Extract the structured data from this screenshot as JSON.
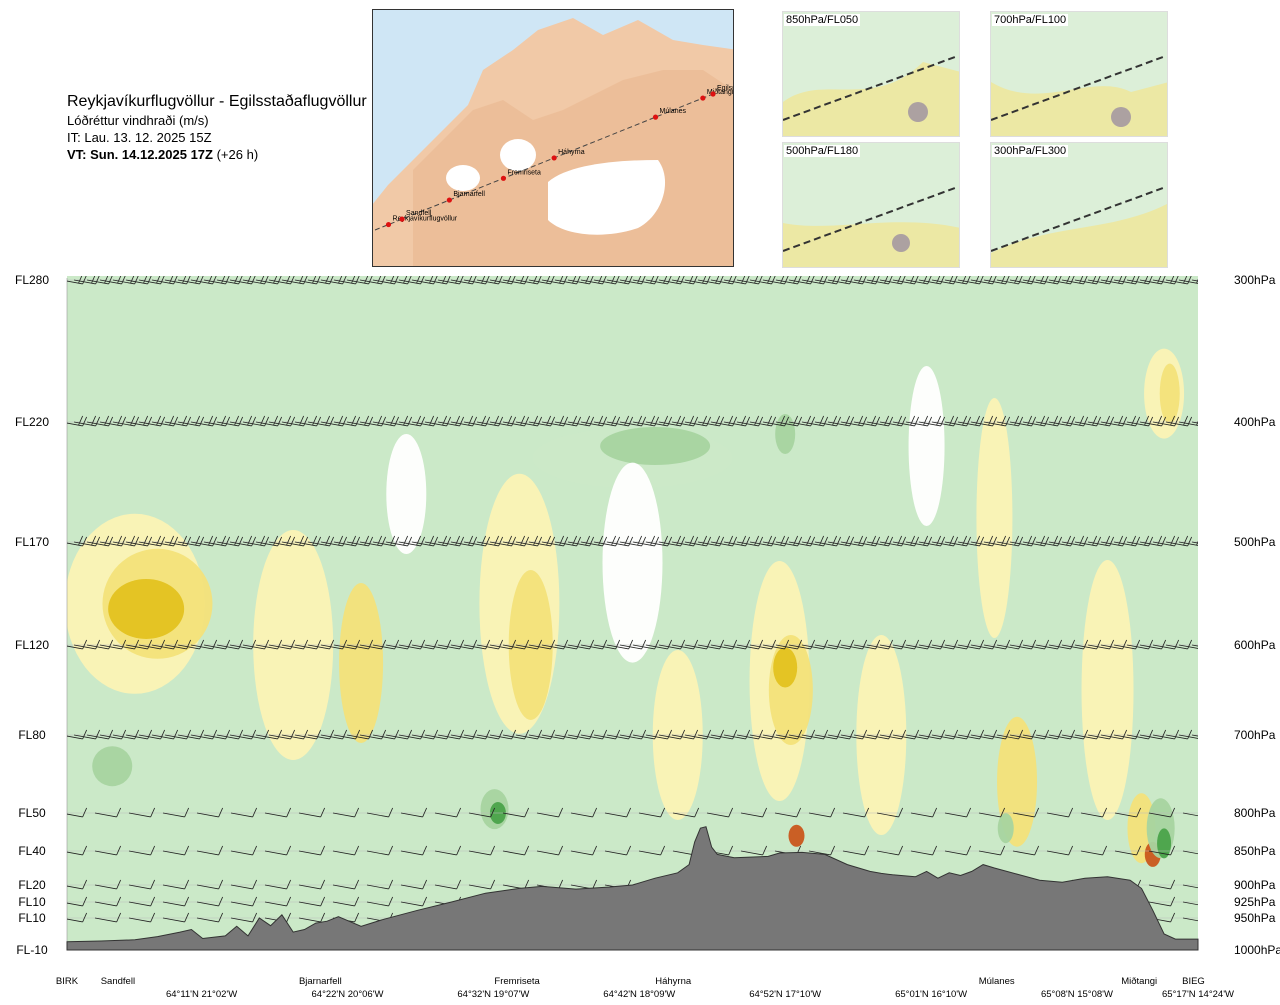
{
  "header": {
    "route_title": "Reykjavíkurflugvöllur - Egilsstaðaflugvöllur",
    "parameter": "Lóðréttur vindhraði (m/s)",
    "issue_time": "IT: Lau. 13. 12. 2025 15Z",
    "valid_time_bold": "VT: Sun. 14.12.2025 17Z",
    "valid_time_offset": "(+26 h)"
  },
  "route_map": {
    "waypoints": [
      "Reykjavíkurflugvöllur",
      "Sandfell",
      "Bjarnarfell",
      "Fremriseta",
      "Háhyrna",
      "Múlanes",
      "Miðtangi",
      "Egilssta"
    ]
  },
  "mini_maps": [
    {
      "label": "850hPa/FL050"
    },
    {
      "label": "700hPa/FL100"
    },
    {
      "label": "500hPa/FL180"
    },
    {
      "label": "300hPa/FL300"
    }
  ],
  "chart_data": {
    "type": "heatmap",
    "description_levels": [
      {
        "fl": "FL280",
        "hpa": "300hPa",
        "p": 300
      },
      {
        "fl": "FL220",
        "hpa": "400hPa",
        "p": 400
      },
      {
        "fl": "FL170",
        "hpa": "500hPa",
        "p": 500
      },
      {
        "fl": "FL120",
        "hpa": "600hPa",
        "p": 600
      },
      {
        "fl": "FL80",
        "hpa": "700hPa",
        "p": 700
      },
      {
        "fl": "FL50",
        "hpa": "800hPa",
        "p": 800
      },
      {
        "fl": "FL40",
        "hpa": "850hPa",
        "p": 850
      },
      {
        "fl": "FL20",
        "hpa": "900hPa",
        "p": 900
      },
      {
        "fl": "FL10",
        "hpa": "925hPa",
        "p": 925
      },
      {
        "fl": "FL10",
        "hpa": "950hPa",
        "p": 950
      },
      {
        "fl": "FL-10",
        "hpa": "1000hPa",
        "p": 1000
      }
    ],
    "waypoints": [
      {
        "name": "BIRK",
        "frac": 0.0
      },
      {
        "name": "Sandfell",
        "frac": 0.045
      },
      {
        "name": "Bjarnarfell",
        "frac": 0.224
      },
      {
        "name": "Fremriseta",
        "frac": 0.398
      },
      {
        "name": "Háhyrna",
        "frac": 0.536
      },
      {
        "name": "Múlanes",
        "frac": 0.822
      },
      {
        "name": "Miðtangi",
        "frac": 0.948
      },
      {
        "name": "BIEG",
        "frac": 0.996
      }
    ],
    "coordinates": [
      {
        "label": "64°11'N 21°02'W",
        "frac": 0.119
      },
      {
        "label": "64°22'N 20°06'W",
        "frac": 0.248
      },
      {
        "label": "64°32'N 19°07'W",
        "frac": 0.377
      },
      {
        "label": "64°42'N 18°09'W",
        "frac": 0.506
      },
      {
        "label": "64°52'N 17°10'W",
        "frac": 0.635
      },
      {
        "label": "65°01'N 16°10'W",
        "frac": 0.764
      },
      {
        "label": "65°08'N 15°08'W",
        "frac": 0.893
      },
      {
        "label": "65°17'N 14°24'W",
        "frac": 1.0
      }
    ],
    "terrain_profile_hpa": [
      [
        0.0,
        987
      ],
      [
        0.03,
        986
      ],
      [
        0.06,
        984
      ],
      [
        0.08,
        979
      ],
      [
        0.1,
        972
      ],
      [
        0.11,
        968
      ],
      [
        0.12,
        982
      ],
      [
        0.14,
        978
      ],
      [
        0.15,
        963
      ],
      [
        0.16,
        978
      ],
      [
        0.17,
        950
      ],
      [
        0.18,
        962
      ],
      [
        0.19,
        945
      ],
      [
        0.2,
        972
      ],
      [
        0.21,
        968
      ],
      [
        0.22,
        958
      ],
      [
        0.23,
        955
      ],
      [
        0.24,
        948
      ],
      [
        0.26,
        963
      ],
      [
        0.28,
        952
      ],
      [
        0.31,
        938
      ],
      [
        0.34,
        925
      ],
      [
        0.37,
        912
      ],
      [
        0.4,
        905
      ],
      [
        0.42,
        902
      ],
      [
        0.45,
        906
      ],
      [
        0.48,
        903
      ],
      [
        0.5,
        900
      ],
      [
        0.52,
        890
      ],
      [
        0.54,
        882
      ],
      [
        0.55,
        870
      ],
      [
        0.555,
        838
      ],
      [
        0.56,
        820
      ],
      [
        0.565,
        818
      ],
      [
        0.57,
        845
      ],
      [
        0.575,
        855
      ],
      [
        0.59,
        860
      ],
      [
        0.62,
        858
      ],
      [
        0.63,
        853
      ],
      [
        0.65,
        852
      ],
      [
        0.67,
        855
      ],
      [
        0.69,
        870
      ],
      [
        0.71,
        880
      ],
      [
        0.72,
        883
      ],
      [
        0.73,
        885
      ],
      [
        0.75,
        888
      ],
      [
        0.76,
        880
      ],
      [
        0.77,
        890
      ],
      [
        0.78,
        882
      ],
      [
        0.79,
        886
      ],
      [
        0.8,
        880
      ],
      [
        0.81,
        870
      ],
      [
        0.82,
        875
      ],
      [
        0.84,
        884
      ],
      [
        0.86,
        893
      ],
      [
        0.88,
        896
      ],
      [
        0.9,
        890
      ],
      [
        0.92,
        888
      ],
      [
        0.94,
        893
      ],
      [
        0.95,
        905
      ],
      [
        0.96,
        938
      ],
      [
        0.97,
        975
      ],
      [
        0.98,
        983
      ],
      [
        1.0,
        983
      ]
    ],
    "vertical_velocity_bands": [
      {
        "level": "weak-up",
        "color": "#fbf3b5"
      },
      {
        "level": "moderate-up",
        "color": "#f3e27a"
      },
      {
        "level": "strong-up",
        "color": "#e3c220"
      },
      {
        "level": "very-strong-up",
        "color": "#c9571c"
      },
      {
        "level": "neutral",
        "color": "#ffffff"
      },
      {
        "level": "weak-down",
        "color": "#cbe9c8"
      },
      {
        "level": "moderate-down",
        "color": "#a6d4a0"
      },
      {
        "level": "strong-down",
        "color": "#4aa34a"
      }
    ],
    "grid": true,
    "legend": "none"
  }
}
